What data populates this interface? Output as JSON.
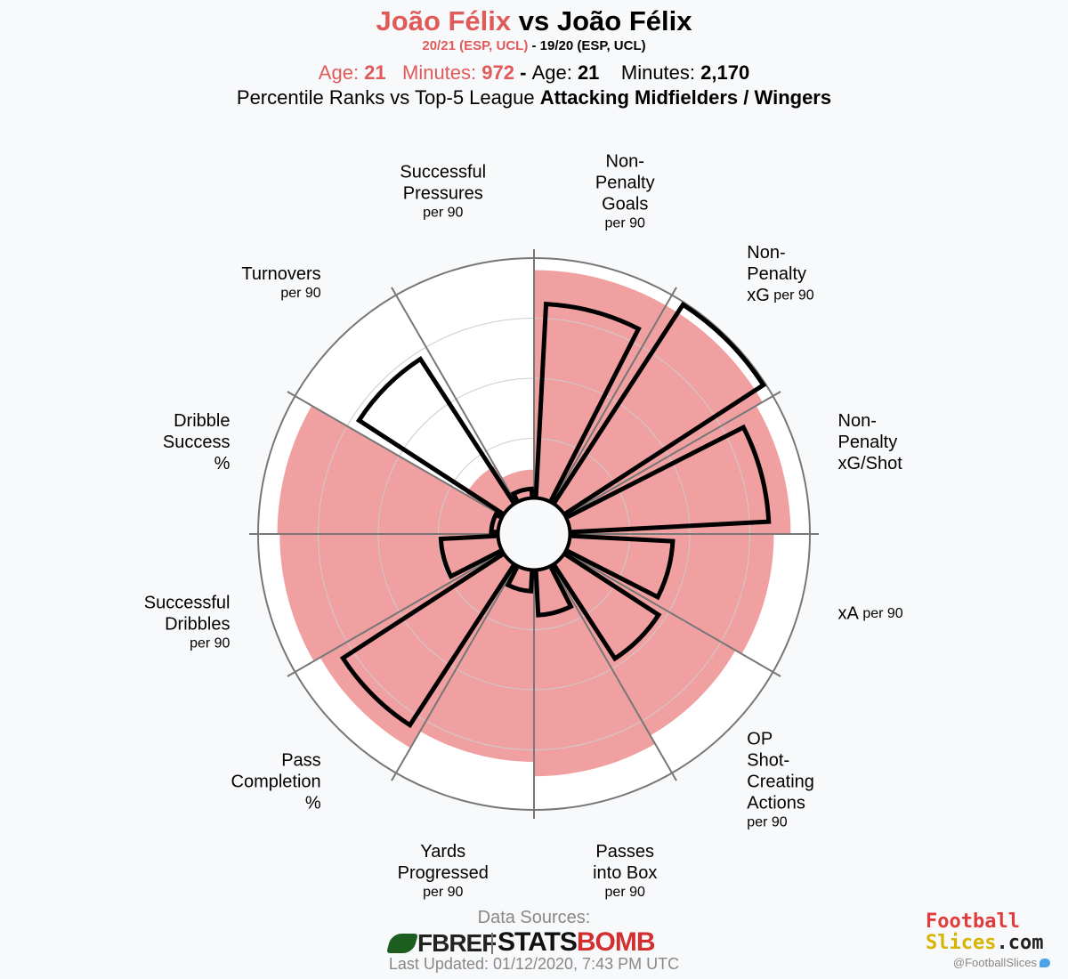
{
  "header": {
    "title_name1": "João Félix",
    "title_vs": " vs ",
    "title_name2": "João Félix",
    "season1": "20/21 (ESP, UCL)",
    "season_sep": " - ",
    "season2": "19/20 (ESP, UCL)",
    "age_label": "Age: ",
    "age1": "21",
    "minutes_label": "Minutes: ",
    "minutes1": "972",
    "age2": "21",
    "minutes2": "2,170",
    "pct_prefix": "Percentile Ranks vs Top-5 League ",
    "pct_group": "Attacking Midfielders / Wingers"
  },
  "colors": {
    "player1": "#e05a5a",
    "player1_fill": "#f0a0a0",
    "player2_stroke": "#000000",
    "axis": "#777777",
    "grid": "#cccccc"
  },
  "chart_data": {
    "type": "polar_bar",
    "radial_range": [
      0,
      100
    ],
    "categories": [
      {
        "lines": [
          "Non-",
          "Penalty",
          "Goals"
        ],
        "sub": "per 90"
      },
      {
        "lines": [
          "Non-",
          "Penalty",
          "xG"
        ],
        "sub": "per 90"
      },
      {
        "lines": [
          "Non-",
          "Penalty",
          "xG/Shot"
        ],
        "sub": ""
      },
      {
        "lines": [
          "xA"
        ],
        "sub": "per 90"
      },
      {
        "lines": [
          "OP",
          "Shot-",
          "Creating",
          "Actions"
        ],
        "sub": "per 90"
      },
      {
        "lines": [
          "Passes",
          "into Box"
        ],
        "sub": "per 90"
      },
      {
        "lines": [
          "Yards",
          "Progressed"
        ],
        "sub": "per 90"
      },
      {
        "lines": [
          "Pass",
          "Completion",
          "%"
        ],
        "sub": ""
      },
      {
        "lines": [
          "Successful",
          "Dribbles"
        ],
        "sub": "per 90"
      },
      {
        "lines": [
          "Dribble",
          "Success",
          "%"
        ],
        "sub": ""
      },
      {
        "lines": [
          "Turnovers"
        ],
        "sub": "per 90"
      },
      {
        "lines": [
          "Successful",
          "Pressures"
        ],
        "sub": "per 90"
      }
    ],
    "series": [
      {
        "name": "20/21 (ESP, UCL)",
        "style": "fill",
        "values": [
          95,
          95,
          92,
          85,
          82,
          86,
          80,
          88,
          91,
          92,
          18,
          12
        ]
      },
      {
        "name": "19/20 (ESP, UCL)",
        "style": "outline",
        "values": [
          81,
          99,
          83,
          43,
          47,
          19,
          9,
          80,
          24,
          3,
          72,
          4
        ]
      }
    ]
  },
  "footer": {
    "sources_label": "Data Sources:",
    "fbref": "FBREF",
    "stats": "STATS",
    "bomb": "BOMB",
    "updated": "Last Updated: 01/12/2020, 7:43 PM UTC",
    "brand_line1": "Football",
    "brand_line2a": "Slices",
    "brand_line2b": ".com",
    "handle": "@FootballSlices"
  }
}
